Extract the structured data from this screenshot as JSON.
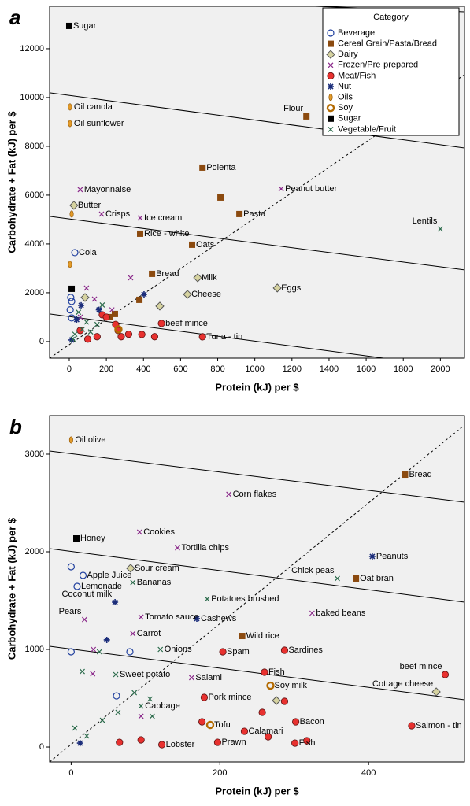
{
  "chart_data": [
    {
      "type": "scatter",
      "panel_label": "a",
      "x_label": "Protein (kJ) per $",
      "y_label": "Carbohydrate + Fat (kJ) per $",
      "xlim": [
        -106,
        2130
      ],
      "ylim": [
        -680,
        13740
      ],
      "xticks": [
        0,
        200,
        400,
        600,
        800,
        1000,
        1200,
        1400,
        1600,
        1800,
        2000
      ],
      "yticks": [
        0,
        2000,
        4000,
        6000,
        8000,
        10000,
        12000
      ],
      "legend": {
        "title": "Category",
        "position": "upper-right"
      },
      "reference_lines": [
        {
          "dashed": true,
          "x": [
            -106,
            2130
          ],
          "y": [
            -680,
            10935
          ]
        },
        {
          "dashed": false,
          "x": [
            1325,
            2130
          ],
          "y": [
            13740,
            13516
          ]
        },
        {
          "dashed": false,
          "x": [
            -106,
            2130
          ],
          "y": [
            10194,
            7935
          ]
        },
        {
          "dashed": false,
          "x": [
            -106,
            2130
          ],
          "y": [
            5129,
            2935
          ]
        },
        {
          "dashed": false,
          "x": [
            -106,
            1694
          ],
          "y": [
            1129,
            -680
          ]
        }
      ],
      "series": [
        {
          "name": "Beverage",
          "color": "#1f3f9e",
          "marker": "open-circle",
          "x": [
            30,
            8,
            13,
            13,
            5
          ],
          "y": [
            3645,
            1806,
            1645,
            968,
            1300
          ],
          "labels": [
            "Cola",
            null,
            null,
            null,
            null
          ]
        },
        {
          "name": "Cereal Grain/Pasta/Bread",
          "color": "#8b4a0f",
          "marker": "square",
          "x": [
            1278,
            718,
            917,
            382,
            662,
            446,
            815,
            246,
            378,
            220
          ],
          "y": [
            9226,
            7129,
            5226,
            4419,
            3968,
            2774,
            5903,
            1129,
            1710,
            1000
          ],
          "labels": [
            "Flour",
            "Polenta",
            "Pasta",
            "Rice - white",
            "Oats",
            "Bread",
            null,
            null,
            null,
            null
          ]
        },
        {
          "name": "Dairy",
          "color": "#d6d3a0",
          "marker": "diamond",
          "x": [
            25,
            692,
            1121,
            637,
            488,
            85
          ],
          "y": [
            5581,
            2613,
            2194,
            1935,
            1452,
            1806
          ],
          "labels": [
            "Butter",
            "Milk",
            "Eggs",
            "Cheese",
            null,
            null
          ]
        },
        {
          "name": "Frozen/Pre-prepared",
          "color": "#8b2a8b",
          "marker": "x",
          "x": [
            59,
            1142,
            174,
            382,
            93,
            331,
            136,
            60,
            230
          ],
          "y": [
            6226,
            6258,
            5226,
            5065,
            2194,
            2613,
            1742,
            1000,
            1300
          ],
          "labels": [
            "Mayonnaise",
            "Peanut butter",
            "Crisps",
            "Ice cream",
            null,
            null,
            null,
            null,
            null
          ]
        },
        {
          "name": "Meat/Fish",
          "color": "#e8312f",
          "marker": "circle",
          "x": [
            497,
            718,
            59,
            178,
            263,
            391,
            200,
            150,
            100,
            280,
            250,
            460,
            320
          ],
          "y": [
            742,
            194,
            452,
            1097,
            452,
            290,
            1000,
            200,
            100,
            200,
            700,
            200,
            300
          ],
          "labels": [
            "beef mince",
            "Tuna - tin",
            null,
            null,
            null,
            null,
            null,
            null,
            null,
            null,
            null,
            null,
            null
          ]
        },
        {
          "name": "Nut",
          "color": "#1b2d7a",
          "marker": "asterisk",
          "x": [
            403,
            64,
            13,
            160,
            40
          ],
          "y": [
            1935,
            1484,
            65,
            1300,
            900
          ],
          "labels": [
            null,
            null,
            null,
            null,
            null
          ]
        },
        {
          "name": "Oils",
          "color": "#e39b2a",
          "marker": "ellipse",
          "x": [
            4,
            4,
            13,
            4
          ],
          "y": [
            9613,
            8935,
            5226,
            3161
          ],
          "labels": [
            "Oil canola",
            "Oil sunflower",
            null,
            null
          ]
        },
        {
          "name": "Soy",
          "color": "#b36a00",
          "marker": "ring",
          "x": [
            265
          ],
          "y": [
            500
          ],
          "labels": [
            null
          ]
        },
        {
          "name": "Sugar",
          "color": "#000000",
          "marker": "square",
          "x": [
            0,
            13
          ],
          "y": [
            12935,
            2161
          ],
          "labels": [
            "Sugar",
            null
          ]
        },
        {
          "name": "Vegetable/Fruit",
          "color": "#2a6a4a",
          "marker": "x",
          "x": [
            2000,
            30,
            93,
            178,
            50,
            115,
            20,
            150,
            70
          ],
          "y": [
            4613,
            300,
            800,
            1500,
            1200,
            400,
            100,
            700,
            500
          ],
          "labels": [
            "Lentils",
            null,
            null,
            null,
            null,
            null,
            null,
            null,
            null
          ]
        }
      ]
    },
    {
      "type": "scatter",
      "panel_label": "b",
      "x_label": "Protein (kJ) per $",
      "y_label": "Carbohydrate + Fat (kJ) per $",
      "xlim": [
        -29,
        529
      ],
      "ylim": [
        -153,
        3395
      ],
      "xticks": [
        0,
        200,
        400
      ],
      "yticks": [
        0,
        1000,
        2000,
        3000
      ],
      "reference_lines": [
        {
          "dashed": true,
          "x": [
            -29,
            529
          ],
          "y": [
            -153,
            3298
          ]
        },
        {
          "dashed": false,
          "x": [
            -29,
            529
          ],
          "y": [
            3032,
            2508
          ]
        },
        {
          "dashed": false,
          "x": [
            -29,
            529
          ],
          "y": [
            2032,
            1484
          ]
        },
        {
          "dashed": false,
          "x": [
            -29,
            529
          ],
          "y": [
            1032,
            484
          ]
        }
      ],
      "series": [
        {
          "color": "#1f3f9e",
          "marker": "open-circle",
          "x": [
            16,
            8,
            0,
            0,
            79,
            61
          ],
          "y": [
            1758,
            1645,
            1847,
            976,
            976,
            524
          ],
          "labels": [
            "Apple Juice",
            "Lemonade",
            null,
            null,
            null,
            null
          ]
        },
        {
          "color": "#8b4a0f",
          "marker": "square",
          "x": [
            449,
            383,
            230
          ],
          "y": [
            2790,
            1726,
            1137
          ],
          "labels": [
            "Bread",
            "Oat bran",
            "Wild rice"
          ]
        },
        {
          "color": "#d6d3a0",
          "marker": "diamond",
          "x": [
            80,
            491,
            276
          ],
          "y": [
            1831,
            565,
            476
          ],
          "labels": [
            "Sour cream",
            "Cottage cheese",
            null
          ]
        },
        {
          "color": "#8b2a8b",
          "marker": "x",
          "x": [
            212,
            92,
            143,
            94,
            324,
            18,
            83,
            162,
            30,
            29,
            94
          ],
          "y": [
            2589,
            2202,
            2040,
            1331,
            1371,
            1306,
            1161,
            710,
            1000,
            750,
            315
          ],
          "labels": [
            "Corn flakes",
            "Cookies",
            "Tortilla chips",
            "Tomato sauce",
            "baked beans",
            "Pears",
            "Carrot",
            "Salami",
            null,
            null,
            null
          ]
        },
        {
          "color": "#e8312f",
          "marker": "circle",
          "x": [
            287,
            204,
            260,
            503,
            179,
            302,
            458,
            233,
            122,
            197,
            301,
            65,
            94,
            176,
            287,
            317,
            257,
            265
          ],
          "y": [
            992,
            976,
            766,
            742,
            508,
            258,
            218,
            161,
            24,
            48,
            40,
            48,
            73,
            258,
            468,
            65,
            355,
            105
          ],
          "labels": [
            "Sardines",
            "Spam",
            "Fish",
            "beef mince",
            "Pork mince",
            "Bacon",
            "Salmon - tin",
            "Calamari",
            "Lobster",
            "Prawn",
            "Fish",
            null,
            null,
            null,
            null,
            null,
            null,
            null
          ]
        },
        {
          "color": "#1b2d7a",
          "marker": "asterisk",
          "x": [
            405,
            59,
            169,
            12,
            48
          ],
          "y": [
            1952,
            1484,
            1315,
            40,
            1097
          ],
          "labels": [
            "Peanuts",
            "Coconut milk",
            "Cashews",
            null,
            null
          ]
        },
        {
          "color": "#e39b2a",
          "marker": "ellipse",
          "x": [
            0
          ],
          "y": [
            3145
          ],
          "labels": [
            "Oil olive"
          ]
        },
        {
          "color": "#b36a00",
          "marker": "ring",
          "x": [
            268,
            187
          ],
          "y": [
            629,
            226
          ],
          "labels": [
            "Soy milk",
            "Tofu"
          ]
        },
        {
          "color": "#000000",
          "marker": "square",
          "x": [
            7
          ],
          "y": [
            2137
          ],
          "labels": [
            "Honey"
          ]
        },
        {
          "color": "#2a6a4a",
          "marker": "x",
          "x": [
            358,
            83,
            183,
            120,
            60,
            94,
            15,
            38,
            5,
            21,
            42,
            63,
            85,
            106,
            109
          ],
          "y": [
            1726,
            1685,
            1516,
            1000,
            742,
            419,
            774,
            976,
            194,
            113,
            274,
            355,
            556,
            492,
            315
          ],
          "labels": [
            "Chick peas",
            "Bananas",
            "Potatoes brushed",
            "Onions",
            "Sweet potato",
            "Cabbage",
            null,
            null,
            null,
            null,
            null,
            null,
            null,
            null,
            null
          ]
        }
      ]
    }
  ]
}
